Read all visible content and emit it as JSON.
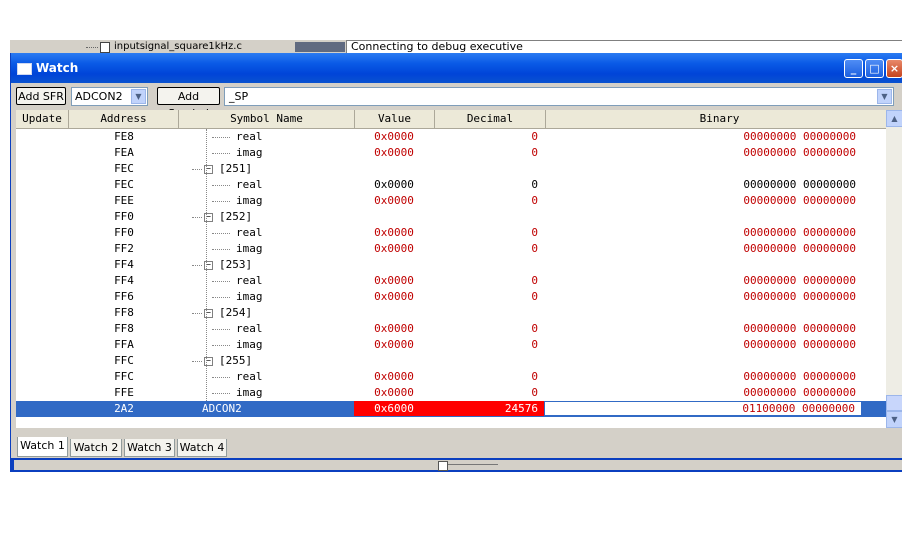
{
  "background": {
    "file_label": "inputsignal_square1kHz.c",
    "status_text": "Connecting to debug executive"
  },
  "window": {
    "title": "Watch",
    "colors": {
      "title_blue": "#0a5ae6",
      "selection": "#316ac5",
      "changed_value": "#c00000",
      "changed_bg": "#ff0000"
    }
  },
  "toolbar": {
    "add_sfr_label": "Add SFR",
    "sfr_selected": "ADCON2",
    "add_symbol_label": "Add Symbol",
    "symbol_selected": "_SP"
  },
  "columns": [
    "Update",
    "Address",
    "Symbol Name",
    "Value",
    "Decimal",
    "Binary"
  ],
  "rows": [
    {
      "address": "FE8",
      "symbol": "real",
      "value": "0x0000",
      "decimal": "0",
      "binary": "00000000 00000000",
      "kind": "leaf",
      "changed": true
    },
    {
      "address": "FEA",
      "symbol": "imag",
      "value": "0x0000",
      "decimal": "0",
      "binary": "00000000 00000000",
      "kind": "leaf",
      "changed": true
    },
    {
      "address": "FEC",
      "symbol": "[251]",
      "value": "",
      "decimal": "",
      "binary": "",
      "kind": "group",
      "changed": false
    },
    {
      "address": "FEC",
      "symbol": "real",
      "value": "0x0000",
      "decimal": "0",
      "binary": "00000000 00000000",
      "kind": "leaf",
      "changed": false
    },
    {
      "address": "FEE",
      "symbol": "imag",
      "value": "0x0000",
      "decimal": "0",
      "binary": "00000000 00000000",
      "kind": "leaf",
      "changed": true
    },
    {
      "address": "FF0",
      "symbol": "[252]",
      "value": "",
      "decimal": "",
      "binary": "",
      "kind": "group",
      "changed": false
    },
    {
      "address": "FF0",
      "symbol": "real",
      "value": "0x0000",
      "decimal": "0",
      "binary": "00000000 00000000",
      "kind": "leaf",
      "changed": true
    },
    {
      "address": "FF2",
      "symbol": "imag",
      "value": "0x0000",
      "decimal": "0",
      "binary": "00000000 00000000",
      "kind": "leaf",
      "changed": true
    },
    {
      "address": "FF4",
      "symbol": "[253]",
      "value": "",
      "decimal": "",
      "binary": "",
      "kind": "group",
      "changed": false
    },
    {
      "address": "FF4",
      "symbol": "real",
      "value": "0x0000",
      "decimal": "0",
      "binary": "00000000 00000000",
      "kind": "leaf",
      "changed": true
    },
    {
      "address": "FF6",
      "symbol": "imag",
      "value": "0x0000",
      "decimal": "0",
      "binary": "00000000 00000000",
      "kind": "leaf",
      "changed": true
    },
    {
      "address": "FF8",
      "symbol": "[254]",
      "value": "",
      "decimal": "",
      "binary": "",
      "kind": "group",
      "changed": false
    },
    {
      "address": "FF8",
      "symbol": "real",
      "value": "0x0000",
      "decimal": "0",
      "binary": "00000000 00000000",
      "kind": "leaf",
      "changed": true
    },
    {
      "address": "FFA",
      "symbol": "imag",
      "value": "0x0000",
      "decimal": "0",
      "binary": "00000000 00000000",
      "kind": "leaf",
      "changed": true
    },
    {
      "address": "FFC",
      "symbol": "[255]",
      "value": "",
      "decimal": "",
      "binary": "",
      "kind": "group",
      "changed": false
    },
    {
      "address": "FFC",
      "symbol": "real",
      "value": "0x0000",
      "decimal": "0",
      "binary": "00000000 00000000",
      "kind": "leaf",
      "changed": true
    },
    {
      "address": "FFE",
      "symbol": "imag",
      "value": "0x0000",
      "decimal": "0",
      "binary": "00000000 00000000",
      "kind": "leaf",
      "changed": true
    },
    {
      "address": "2A2",
      "symbol": "ADCON2",
      "value": "0x6000",
      "decimal": "24576",
      "binary": "01100000 00000000",
      "kind": "selected",
      "changed": true
    }
  ],
  "tabs": [
    "Watch 1",
    "Watch 2",
    "Watch 3",
    "Watch 4"
  ],
  "active_tab": "Watch 1"
}
